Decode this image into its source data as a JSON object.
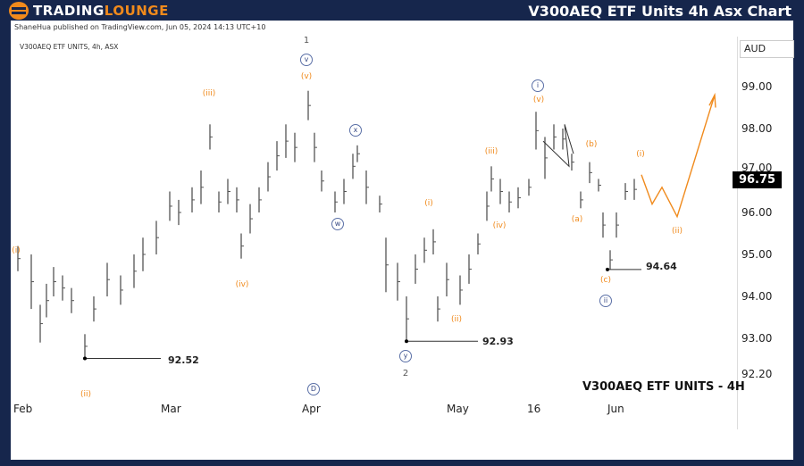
{
  "header": {
    "logo_part1": "TRADING",
    "logo_part2": "LOUNGE",
    "title": "V300AEQ ETF Units 4h Asx Chart"
  },
  "published": "ShaneHua published on TradingView.com, Jun 05, 2024 14:13 UTC+10",
  "symbol_line": "V300AEQ ETF UNITS, 4h, ASX",
  "currency": "AUD",
  "last_price": "96.75",
  "watermark": "V300AEQ ETF UNITS - 4H",
  "colors": {
    "frame": "#16264c",
    "accent": "#f08a1c",
    "bars": "#555555",
    "wave_circle": "#5a6fa6"
  },
  "chart_data": {
    "type": "ohlc",
    "y_ticks": [
      "99.00",
      "98.00",
      "97.00",
      "96.00",
      "95.00",
      "94.00",
      "93.00",
      "92.20"
    ],
    "ylim": [
      92.0,
      99.9
    ],
    "x_ticks": [
      "Feb",
      "Mar",
      "Apr",
      "May",
      "16",
      "Jun"
    ],
    "bars": [
      [
        95.2,
        94.6
      ],
      [
        95.0,
        93.7
      ],
      [
        93.8,
        92.9
      ],
      [
        94.3,
        93.5
      ],
      [
        94.7,
        94.0
      ],
      [
        94.5,
        93.9
      ],
      [
        94.2,
        93.6
      ],
      [
        93.1,
        92.52
      ],
      [
        94.0,
        93.4
      ],
      [
        94.8,
        94.0
      ],
      [
        94.5,
        93.8
      ],
      [
        95.0,
        94.2
      ],
      [
        95.4,
        94.6
      ],
      [
        95.8,
        95.0
      ],
      [
        96.5,
        95.8
      ],
      [
        96.3,
        95.7
      ],
      [
        96.6,
        96.0
      ],
      [
        97.0,
        96.2
      ],
      [
        98.1,
        97.5
      ],
      [
        96.5,
        96.0
      ],
      [
        96.8,
        96.2
      ],
      [
        96.6,
        96.0
      ],
      [
        95.5,
        94.9
      ],
      [
        96.2,
        95.5
      ],
      [
        96.6,
        96.0
      ],
      [
        97.2,
        96.5
      ],
      [
        97.7,
        97.0
      ],
      [
        98.1,
        97.3
      ],
      [
        97.9,
        97.2
      ],
      [
        98.9,
        98.2
      ],
      [
        97.9,
        97.2
      ],
      [
        97.0,
        96.5
      ],
      [
        96.5,
        96.0
      ],
      [
        96.8,
        96.2
      ],
      [
        97.4,
        96.8
      ],
      [
        97.6,
        97.2
      ],
      [
        97.0,
        96.2
      ],
      [
        96.4,
        96.0
      ],
      [
        95.4,
        94.1
      ],
      [
        94.8,
        93.9
      ],
      [
        94.0,
        92.93
      ],
      [
        95.0,
        94.3
      ],
      [
        95.4,
        94.8
      ],
      [
        95.6,
        95.0
      ],
      [
        94.0,
        93.4
      ],
      [
        94.8,
        94.0
      ],
      [
        94.5,
        93.8
      ],
      [
        95.0,
        94.3
      ],
      [
        95.5,
        95.0
      ],
      [
        96.5,
        95.8
      ],
      [
        97.1,
        96.5
      ],
      [
        96.8,
        96.2
      ],
      [
        96.5,
        96.0
      ],
      [
        96.6,
        96.1
      ],
      [
        96.8,
        96.4
      ],
      [
        98.4,
        97.5
      ],
      [
        97.8,
        96.8
      ],
      [
        98.1,
        97.5
      ],
      [
        98.0,
        97.5
      ],
      [
        97.4,
        97.0
      ],
      [
        96.5,
        96.1
      ],
      [
        97.2,
        96.7
      ],
      [
        96.8,
        96.5
      ],
      [
        96.0,
        95.4
      ],
      [
        95.1,
        94.64
      ],
      [
        96.0,
        95.4
      ],
      [
        96.7,
        96.3
      ],
      [
        96.8,
        96.3
      ]
    ],
    "projection": [
      96.9,
      96.2,
      96.6,
      95.9,
      98.8
    ],
    "levels": [
      {
        "value": "92.52"
      },
      {
        "value": "92.93"
      },
      {
        "value": "94.64"
      }
    ],
    "wave_labels": {
      "orange": [
        "(i)",
        "(ii)",
        "(iii)",
        "(iv)",
        "(v)",
        "(i)",
        "(ii)",
        "(iii)",
        "(iv)",
        "(v)",
        "(a)",
        "(b)",
        "(c)",
        "(i)",
        "(ii)"
      ],
      "circled": [
        "v",
        "w",
        "x",
        "y",
        "i",
        "ii",
        "D"
      ],
      "plain": [
        "1",
        "2"
      ]
    }
  }
}
